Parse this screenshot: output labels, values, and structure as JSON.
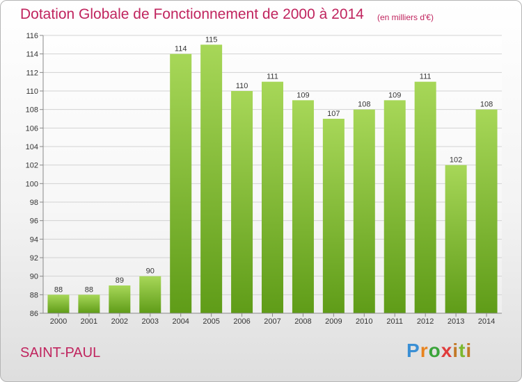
{
  "header": {
    "title": "Dotation Globale de Fonctionnement de 2000 à 2014",
    "unit": "(en milliers d'€)"
  },
  "commune": "SAINT-PAUL",
  "logo": {
    "letters": [
      "P",
      "r",
      "o",
      "x",
      "i",
      "t",
      "i"
    ]
  },
  "colors": {
    "bar_top": "#a7d758",
    "bar_bottom": "#5f9c18",
    "title": "#c0245e"
  },
  "chart_data": {
    "type": "bar",
    "title": "Dotation Globale de Fonctionnement de 2000 à 2014",
    "subtitle": "(en milliers d'€)",
    "xlabel": "",
    "ylabel": "",
    "categories": [
      "2000",
      "2001",
      "2002",
      "2003",
      "2004",
      "2005",
      "2006",
      "2007",
      "2008",
      "2009",
      "2010",
      "2011",
      "2012",
      "2013",
      "2014"
    ],
    "values": [
      88,
      88,
      89,
      90,
      114,
      115,
      110,
      111,
      109,
      107,
      108,
      109,
      111,
      102,
      108
    ],
    "ylim": [
      86,
      116
    ],
    "yticks": [
      86,
      88,
      90,
      92,
      94,
      96,
      98,
      100,
      102,
      104,
      106,
      108,
      110,
      112,
      114,
      116
    ],
    "grid": true
  }
}
